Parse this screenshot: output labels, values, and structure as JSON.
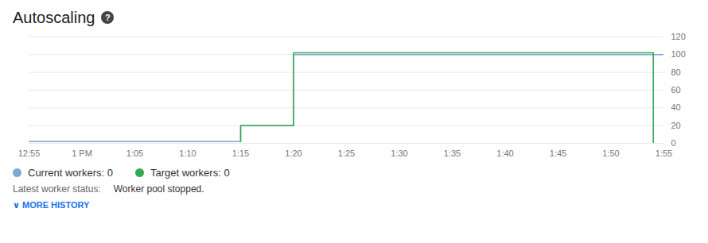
{
  "chart_data": {
    "type": "line",
    "title": "Autoscaling",
    "series": [
      {
        "name": "Current workers: 0",
        "color": "#7baad4",
        "x": [
          0,
          20,
          20,
          25,
          25,
          60
        ],
        "values": [
          2,
          2,
          20,
          20,
          100,
          100
        ]
      },
      {
        "name": "Target workers: 0",
        "color": "#34a853",
        "x": [
          20,
          20,
          25,
          25,
          59,
          59
        ],
        "values": [
          2,
          20,
          20,
          102,
          102,
          0
        ]
      }
    ],
    "xlim": [
      0,
      60
    ],
    "xticks": [
      {
        "value": 0,
        "label": "12:55"
      },
      {
        "value": 5,
        "label": "1 PM"
      },
      {
        "value": 10,
        "label": "1:05"
      },
      {
        "value": 15,
        "label": "1:10"
      },
      {
        "value": 20,
        "label": "1:15"
      },
      {
        "value": 25,
        "label": "1:20"
      },
      {
        "value": 30,
        "label": "1:25"
      },
      {
        "value": 35,
        "label": "1:30"
      },
      {
        "value": 40,
        "label": "1:35"
      },
      {
        "value": 45,
        "label": "1:40"
      },
      {
        "value": 50,
        "label": "1:45"
      },
      {
        "value": 55,
        "label": "1:50"
      },
      {
        "value": 60,
        "label": "1:55"
      }
    ],
    "ylim": [
      0,
      120
    ],
    "yticks": [
      0,
      20,
      40,
      60,
      80,
      100,
      120
    ],
    "grid": true,
    "legend": "bottom",
    "annotations": [
      "?",
      "Latest worker status:",
      "Worker pool stopped.",
      "∨  MORE HISTORY"
    ]
  }
}
